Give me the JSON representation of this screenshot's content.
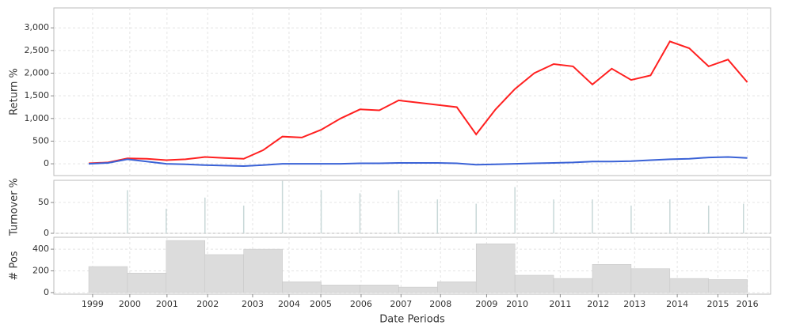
{
  "chart_data": [
    {
      "type": "line",
      "ylabel": "Return %",
      "x": [
        0,
        5,
        10,
        15,
        20,
        25,
        30,
        35,
        40,
        45,
        50,
        55,
        60,
        65,
        70,
        75,
        80,
        85,
        90,
        95,
        100,
        105,
        110,
        115,
        120,
        125,
        130,
        135,
        140,
        145,
        150,
        155,
        160,
        165,
        170
      ],
      "series": [
        {
          "color": "#ff2020",
          "values": [
            10,
            30,
            120,
            110,
            80,
            100,
            150,
            130,
            110,
            300,
            600,
            580,
            750,
            1000,
            1200,
            1180,
            1400,
            1350,
            1300,
            1250,
            650,
            1200,
            1650,
            2000,
            2200,
            2150,
            1750,
            2100,
            1850,
            1950,
            2700,
            2550,
            2150,
            2300,
            1800
          ]
        },
        {
          "color": "#3a62d6",
          "values": [
            0,
            20,
            100,
            50,
            0,
            -10,
            -30,
            -40,
            -50,
            -30,
            0,
            0,
            0,
            0,
            10,
            10,
            20,
            20,
            20,
            10,
            -20,
            -10,
            0,
            10,
            20,
            30,
            50,
            50,
            60,
            80,
            100,
            110,
            140,
            150,
            130
          ]
        }
      ],
      "xlim": [
        -9,
        176
      ],
      "ylim": [
        -260,
        3440
      ],
      "yticks": [
        0,
        500,
        {
          "value": 1000,
          "label": "1,000"
        },
        {
          "value": 1500,
          "label": "1,500"
        },
        {
          "value": 2000,
          "label": "2,000"
        },
        {
          "value": 2500,
          "label": "2,500"
        },
        {
          "value": 3000,
          "label": "3,000"
        }
      ],
      "grid": true
    },
    {
      "type": "spike",
      "ylabel": "Turnover %",
      "x": [
        10,
        20,
        30,
        40,
        50,
        60,
        70,
        80,
        90,
        100,
        110,
        120,
        130,
        140,
        150,
        160,
        169
      ],
      "values": [
        70,
        40,
        58,
        45,
        85,
        70,
        65,
        70,
        55,
        48,
        75,
        55,
        55,
        45,
        55,
        45,
        48
      ],
      "color": "#c8d8d8",
      "xlim": [
        -9,
        176
      ],
      "ylim": [
        0,
        86
      ],
      "yticks": [
        0,
        50
      ],
      "grid": true
    },
    {
      "type": "histogram",
      "ylabel": "# Pos",
      "xlabel": "Date Periods",
      "bins": [
        0,
        10,
        20,
        30,
        40,
        50,
        60,
        70,
        80,
        90,
        100,
        110,
        120,
        130,
        140,
        150,
        160,
        170
      ],
      "values": [
        240,
        180,
        480,
        350,
        400,
        100,
        70,
        70,
        50,
        100,
        450,
        160,
        130,
        260,
        220,
        130,
        120
      ],
      "color": "#dcdcdc",
      "xlim": [
        -9,
        176
      ],
      "ylim": [
        -15,
        510
      ],
      "yticks": [
        0,
        200,
        400
      ],
      "xticks": [
        {
          "value": 1,
          "label": "1999"
        },
        {
          "value": 10.6,
          "label": "2000"
        },
        {
          "value": 20.2,
          "label": "2001"
        },
        {
          "value": 30.7,
          "label": "2002"
        },
        {
          "value": 42.3,
          "label": "2003"
        },
        {
          "value": 51.7,
          "label": "2004"
        },
        {
          "value": 59.9,
          "label": "2005"
        },
        {
          "value": 70.3,
          "label": "2006"
        },
        {
          "value": 80.6,
          "label": "2007"
        },
        {
          "value": 90.8,
          "label": "2008"
        },
        {
          "value": 102.7,
          "label": "2009"
        },
        {
          "value": 110.6,
          "label": "2010"
        },
        {
          "value": 121.7,
          "label": "2011"
        },
        {
          "value": 131.5,
          "label": "2012"
        },
        {
          "value": 140.9,
          "label": "2013"
        },
        {
          "value": 151.9,
          "label": "2014"
        },
        {
          "value": 162.4,
          "label": "2015"
        },
        {
          "value": 170,
          "label": "2016"
        }
      ],
      "grid": true
    }
  ]
}
